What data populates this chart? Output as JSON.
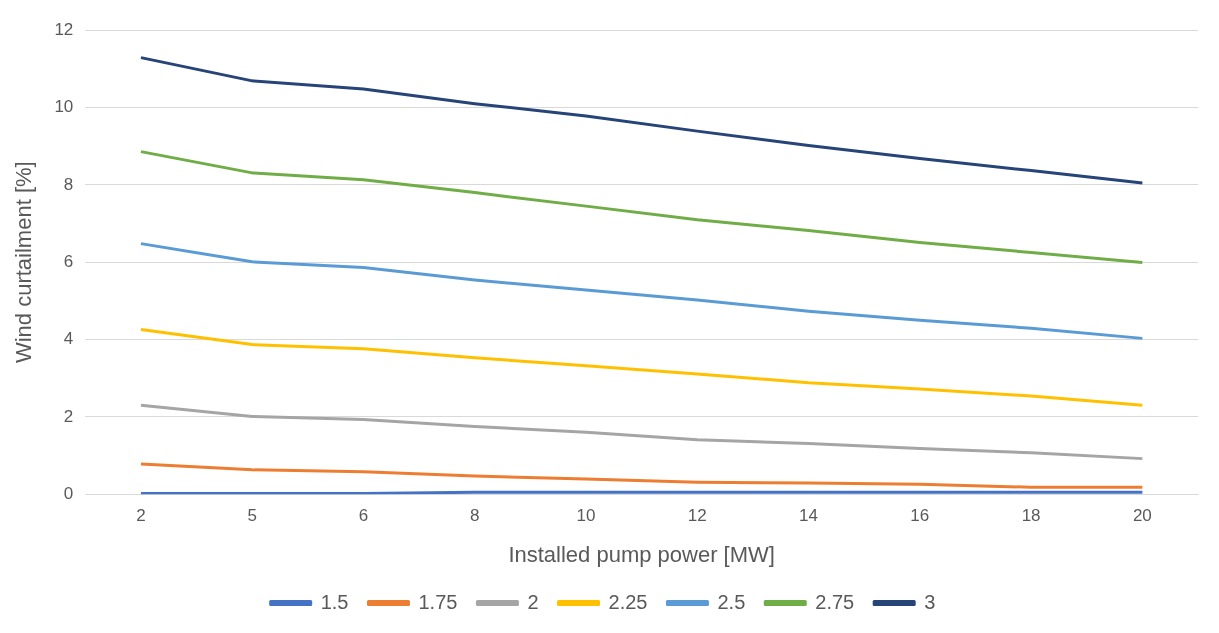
{
  "chart_data": {
    "type": "line",
    "xlabel": "Installed pump power [MW]",
    "ylabel": "Wind curtailment [%]",
    "categories": [
      "2",
      "5",
      "6",
      "8",
      "10",
      "12",
      "14",
      "16",
      "18",
      "20"
    ],
    "ylim": [
      0,
      12
    ],
    "yticks": [
      0,
      2,
      4,
      6,
      8,
      10,
      12
    ],
    "grid": "y",
    "legend": "bottom",
    "marker": "none",
    "line_style": "solid",
    "series": [
      {
        "name": "1.5",
        "color": "#4472c4",
        "values": [
          0.02,
          0.02,
          0.02,
          0.05,
          0.05,
          0.05,
          0.05,
          0.05,
          0.05,
          0.05
        ]
      },
      {
        "name": "1.75",
        "color": "#ed7d31",
        "values": [
          0.78,
          0.63,
          0.58,
          0.47,
          0.39,
          0.31,
          0.29,
          0.26,
          0.18,
          0.18
        ]
      },
      {
        "name": "2",
        "color": "#a5a5a5",
        "values": [
          2.3,
          2.01,
          1.93,
          1.75,
          1.6,
          1.41,
          1.31,
          1.18,
          1.07,
          0.92
        ]
      },
      {
        "name": "2.25",
        "color": "#ffc000",
        "values": [
          4.26,
          3.87,
          3.76,
          3.53,
          3.32,
          3.11,
          2.88,
          2.72,
          2.54,
          2.3
        ]
      },
      {
        "name": "2.5",
        "color": "#5b9bd5",
        "values": [
          6.48,
          6.01,
          5.86,
          5.54,
          5.28,
          5.02,
          4.73,
          4.5,
          4.29,
          4.03
        ]
      },
      {
        "name": "2.75",
        "color": "#70ad47",
        "values": [
          8.86,
          8.31,
          8.13,
          7.8,
          7.45,
          7.1,
          6.82,
          6.51,
          6.25,
          5.99
        ]
      },
      {
        "name": "3",
        "color": "#264478",
        "values": [
          11.29,
          10.69,
          10.48,
          10.1,
          9.78,
          9.39,
          9.02,
          8.68,
          8.37,
          8.05
        ]
      }
    ]
  }
}
